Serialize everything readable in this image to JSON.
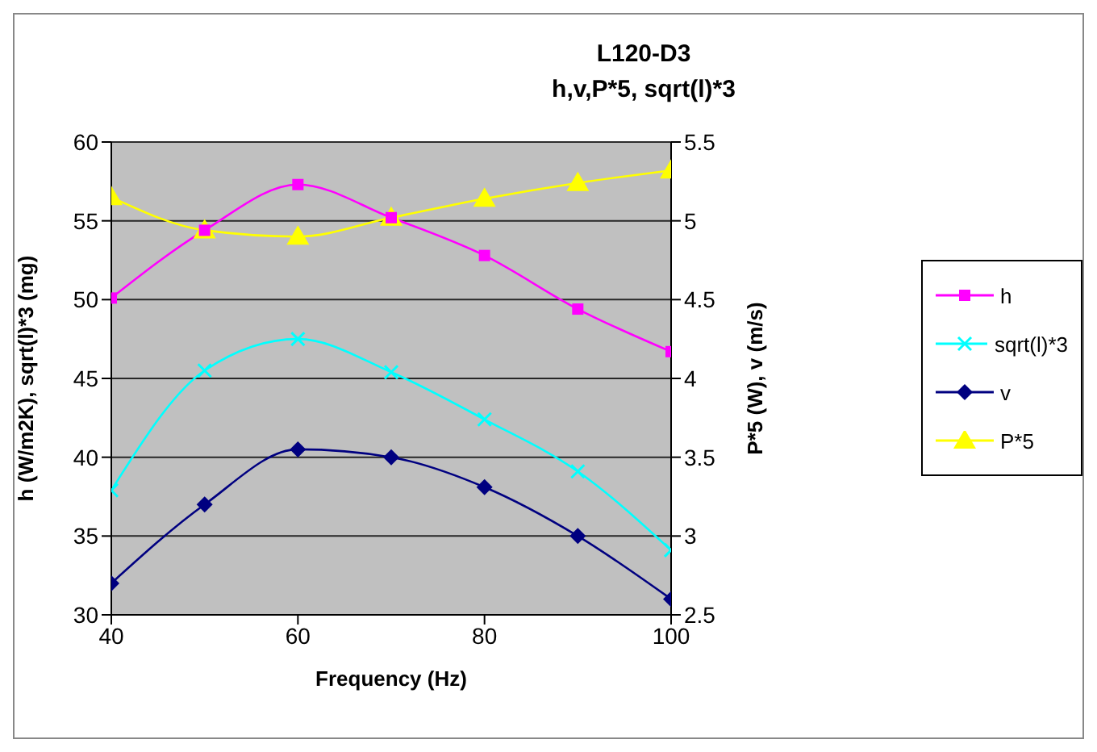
{
  "chart_data": {
    "type": "line",
    "title": "L120-D3",
    "subtitle": "h,v,P*5, sqrt(l)*3",
    "xlabel": "Frequency (Hz)",
    "ylabel": "h (W/m2K), sqrt(l)*3 (mg)",
    "y2label": "P*5 (W), v (m/s)",
    "x": [
      40,
      50,
      60,
      70,
      80,
      90,
      100
    ],
    "xlim": [
      40,
      100
    ],
    "xticks": [
      40,
      60,
      80,
      100
    ],
    "ylim": [
      30,
      60
    ],
    "yticks": [
      30,
      35,
      40,
      45,
      50,
      55,
      60
    ],
    "y2lim": [
      2.5,
      5.5
    ],
    "y2ticks": [
      2.5,
      3,
      3.5,
      4,
      4.5,
      5,
      5.5
    ],
    "grid": "y",
    "legend": "right",
    "series": [
      {
        "name": "h",
        "color": "#ff00ff",
        "marker": "square",
        "values": [
          50.1,
          54.4,
          57.3,
          55.2,
          52.8,
          49.4,
          46.7
        ]
      },
      {
        "name": "sqrt(l)*3",
        "color": "#00ffff",
        "marker": "cross",
        "values": [
          37.9,
          45.5,
          47.5,
          45.4,
          42.4,
          39.1,
          34.1
        ]
      },
      {
        "name": "v",
        "color": "#000080",
        "marker": "diamond",
        "axis": "y2",
        "values": [
          2.7,
          3.2,
          3.55,
          3.5,
          3.31,
          3.0,
          2.6
        ]
      },
      {
        "name": "P*5",
        "color": "#ffff00",
        "marker": "triangle",
        "axis": "y2",
        "values": [
          5.15,
          4.94,
          4.9,
          5.02,
          5.14,
          5.24,
          5.32
        ]
      }
    ]
  }
}
